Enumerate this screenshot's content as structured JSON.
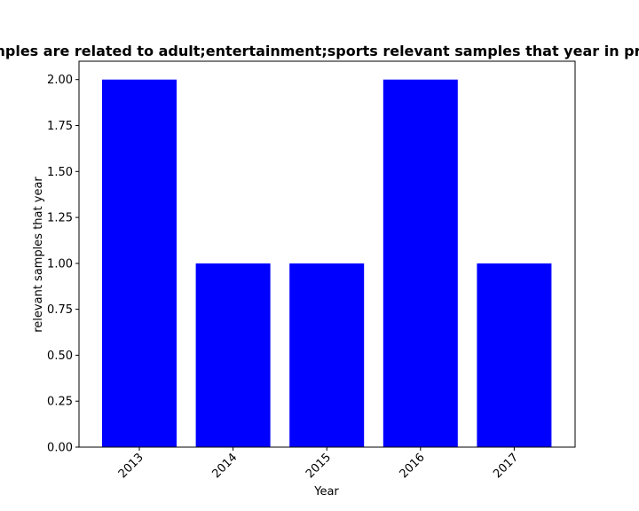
{
  "chart_data": {
    "type": "bar",
    "title": "Samples are related to adult;entertainment;sports relevant samples that year in privacy",
    "xlabel": "Year",
    "ylabel": "relevant samples that year",
    "categories": [
      "2013",
      "2014",
      "2015",
      "2016",
      "2017"
    ],
    "values": [
      2,
      1,
      1,
      2,
      1
    ],
    "ylim": [
      0,
      2.1
    ],
    "yticks": [
      "0.00",
      "0.25",
      "0.50",
      "0.75",
      "1.00",
      "1.25",
      "1.50",
      "1.75",
      "2.00"
    ],
    "bar_color": "#0000ff",
    "grid": false,
    "legend": "none"
  }
}
